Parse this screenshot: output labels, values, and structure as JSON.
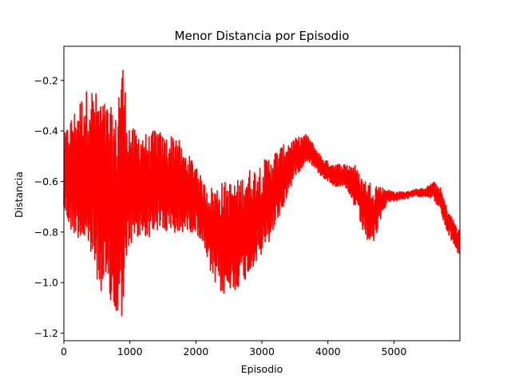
{
  "chart_data": {
    "type": "line",
    "title": "Menor Distancia por Episodio",
    "xlabel": "Episodio",
    "ylabel": "Distancia",
    "xlim": [
      0,
      5999
    ],
    "ylim": [
      -1.23,
      -0.065
    ],
    "xticks": [
      0,
      1000,
      2000,
      3000,
      4000,
      5000
    ],
    "xtick_labels": [
      "0",
      "1000",
      "2000",
      "3000",
      "4000",
      "5000"
    ],
    "yticks": [
      -1.2,
      -1.0,
      -0.8,
      -0.6,
      -0.4,
      -0.2
    ],
    "ytick_labels": [
      "−1.2",
      "−1.0",
      "−0.8",
      "−0.6",
      "−0.4",
      "−0.2"
    ],
    "grid": false,
    "series": [
      {
        "name": "Distancia",
        "color": "#ff0000",
        "envelope": {
          "x": [
            0,
            100,
            200,
            300,
            400,
            500,
            600,
            700,
            800,
            850,
            900,
            950,
            1000,
            1100,
            1200,
            1300,
            1400,
            1500,
            1600,
            1700,
            1800,
            1900,
            2000,
            2100,
            2200,
            2300,
            2400,
            2500,
            2600,
            2700,
            2800,
            2900,
            3000,
            3100,
            3200,
            3300,
            3400,
            3500,
            3600,
            3650,
            3700,
            3800,
            3900,
            4000,
            4100,
            4200,
            4300,
            4400,
            4500,
            4600,
            4700,
            4800,
            4900,
            5000,
            5100,
            5200,
            5300,
            5400,
            5500,
            5600,
            5700,
            5800,
            5900,
            5999
          ],
          "upper": [
            -0.42,
            -0.35,
            -0.3,
            -0.25,
            -0.22,
            -0.25,
            -0.28,
            -0.3,
            -0.35,
            -0.12,
            -0.12,
            -0.3,
            -0.38,
            -0.4,
            -0.4,
            -0.42,
            -0.38,
            -0.42,
            -0.42,
            -0.4,
            -0.48,
            -0.5,
            -0.52,
            -0.6,
            -0.62,
            -0.62,
            -0.6,
            -0.6,
            -0.6,
            -0.58,
            -0.55,
            -0.55,
            -0.52,
            -0.5,
            -0.48,
            -0.46,
            -0.44,
            -0.43,
            -0.42,
            -0.41,
            -0.42,
            -0.46,
            -0.5,
            -0.52,
            -0.53,
            -0.53,
            -0.53,
            -0.53,
            -0.58,
            -0.6,
            -0.6,
            -0.62,
            -0.63,
            -0.64,
            -0.64,
            -0.64,
            -0.63,
            -0.63,
            -0.62,
            -0.6,
            -0.62,
            -0.7,
            -0.75,
            -0.8
          ],
          "lower": [
            -0.72,
            -0.8,
            -0.82,
            -0.85,
            -0.9,
            -1.0,
            -1.05,
            -1.1,
            -1.18,
            -1.18,
            -1.1,
            -0.95,
            -0.85,
            -0.85,
            -0.82,
            -0.82,
            -0.8,
            -0.8,
            -0.82,
            -0.82,
            -0.8,
            -0.8,
            -0.8,
            -0.85,
            -0.95,
            -1.02,
            -1.05,
            -1.05,
            -1.03,
            -1.0,
            -0.98,
            -0.92,
            -0.9,
            -0.85,
            -0.78,
            -0.72,
            -0.65,
            -0.58,
            -0.55,
            -0.53,
            -0.52,
            -0.55,
            -0.58,
            -0.6,
            -0.62,
            -0.62,
            -0.65,
            -0.7,
            -0.78,
            -0.84,
            -0.85,
            -0.75,
            -0.68,
            -0.68,
            -0.67,
            -0.67,
            -0.66,
            -0.66,
            -0.66,
            -0.67,
            -0.72,
            -0.8,
            -0.85,
            -0.9
          ]
        }
      }
    ]
  }
}
